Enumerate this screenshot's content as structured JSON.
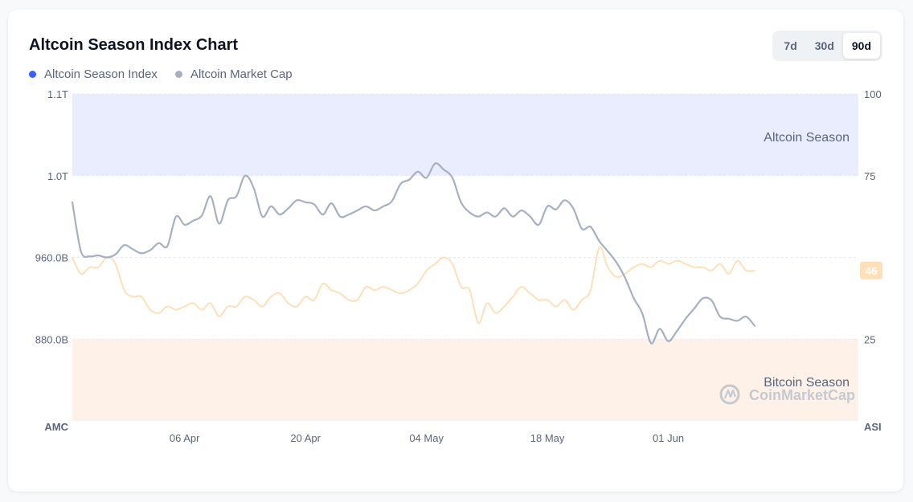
{
  "chart_data": {
    "type": "line",
    "title": "Altcoin Season Index Chart",
    "range_options": [
      "7d",
      "30d",
      "90d"
    ],
    "selected_range": "90d",
    "x_ticks": [
      "06 Apr",
      "20 Apr",
      "04 May",
      "18 May",
      "01 Jun"
    ],
    "x_tick_days": [
      6,
      20,
      34,
      48,
      62
    ],
    "x_range_days": [
      -7,
      84
    ],
    "x_axis_origin_note": "",
    "left_axis": {
      "title": "AMC",
      "ticks": [
        "1.1T",
        "1.0T",
        "960.0B",
        "880.0B"
      ],
      "range": [
        800,
        1120
      ]
    },
    "right_axis": {
      "title": "ASI",
      "ticks": [
        "100",
        "75",
        "25"
      ],
      "range": [
        0,
        100
      ]
    },
    "zones": {
      "altcoin": {
        "label": "Altcoin Season",
        "from": 75,
        "to": 100,
        "color": "#eaedfd"
      },
      "bitcoin": {
        "label": "Bitcoin Season",
        "from": 0,
        "to": 25,
        "color": "#fef1e8"
      }
    },
    "series": [
      {
        "name": "Altcoin Season Index",
        "axis": "right",
        "legend_color": "#3861fb",
        "line_color": "#ffdfb8",
        "last_value": "46",
        "values": [
          [
            -7,
            50
          ],
          [
            -6,
            45
          ],
          [
            -5,
            47
          ],
          [
            -4,
            47
          ],
          [
            -3,
            50
          ],
          [
            -2,
            48
          ],
          [
            -1,
            40
          ],
          [
            0,
            38
          ],
          [
            1,
            38
          ],
          [
            2,
            34
          ],
          [
            3,
            33
          ],
          [
            4,
            35
          ],
          [
            5,
            34
          ],
          [
            6,
            35
          ],
          [
            7,
            36
          ],
          [
            8,
            34
          ],
          [
            9,
            36
          ],
          [
            10,
            32
          ],
          [
            11,
            35
          ],
          [
            12,
            35
          ],
          [
            13,
            38
          ],
          [
            14,
            37
          ],
          [
            15,
            35
          ],
          [
            16,
            38
          ],
          [
            17,
            39
          ],
          [
            18,
            36
          ],
          [
            19,
            35
          ],
          [
            20,
            38
          ],
          [
            21,
            37
          ],
          [
            22,
            42
          ],
          [
            23,
            40
          ],
          [
            24,
            39
          ],
          [
            25,
            37
          ],
          [
            26,
            37
          ],
          [
            27,
            41
          ],
          [
            28,
            40
          ],
          [
            29,
            41
          ],
          [
            30,
            40
          ],
          [
            31,
            39
          ],
          [
            32,
            40
          ],
          [
            33,
            42
          ],
          [
            34,
            46
          ],
          [
            35,
            48
          ],
          [
            36,
            50
          ],
          [
            37,
            48
          ],
          [
            38,
            41
          ],
          [
            39,
            40
          ],
          [
            40,
            30
          ],
          [
            41,
            36
          ],
          [
            42,
            33
          ],
          [
            43,
            35
          ],
          [
            44,
            38
          ],
          [
            45,
            41
          ],
          [
            46,
            39
          ],
          [
            47,
            37
          ],
          [
            48,
            37
          ],
          [
            49,
            35
          ],
          [
            50,
            37
          ],
          [
            51,
            34
          ],
          [
            52,
            37
          ],
          [
            53,
            40
          ],
          [
            54,
            53
          ],
          [
            55,
            47
          ],
          [
            56,
            44
          ],
          [
            57,
            45
          ],
          [
            58,
            47
          ],
          [
            59,
            48
          ],
          [
            60,
            47
          ],
          [
            61,
            49
          ],
          [
            62,
            48
          ],
          [
            63,
            49
          ],
          [
            64,
            48
          ],
          [
            65,
            47
          ],
          [
            66,
            47
          ],
          [
            67,
            46
          ],
          [
            68,
            48
          ],
          [
            69,
            45
          ],
          [
            70,
            49
          ],
          [
            71,
            46
          ],
          [
            72,
            46
          ]
        ]
      },
      {
        "name": "Altcoin Market Cap",
        "axis": "left",
        "legend_color": "#a6b0c3",
        "line_color": "#a6b0c3",
        "values": [
          [
            -7,
            1014
          ],
          [
            -6,
            966
          ],
          [
            -5,
            961
          ],
          [
            -4,
            962
          ],
          [
            -3,
            960
          ],
          [
            -2,
            963
          ],
          [
            -1,
            972
          ],
          [
            0,
            968
          ],
          [
            1,
            964
          ],
          [
            2,
            967
          ],
          [
            3,
            974
          ],
          [
            4,
            971
          ],
          [
            5,
            1000
          ],
          [
            6,
            992
          ],
          [
            7,
            996
          ],
          [
            8,
            1001
          ],
          [
            9,
            1020
          ],
          [
            10,
            993
          ],
          [
            11,
            1016
          ],
          [
            12,
            1020
          ],
          [
            13,
            1040
          ],
          [
            14,
            1028
          ],
          [
            15,
            1000
          ],
          [
            16,
            1010
          ],
          [
            17,
            1002
          ],
          [
            18,
            1008
          ],
          [
            19,
            1016
          ],
          [
            20,
            1014
          ],
          [
            21,
            1012
          ],
          [
            22,
            1002
          ],
          [
            23,
            1013
          ],
          [
            24,
            1000
          ],
          [
            25,
            1002
          ],
          [
            26,
            1006
          ],
          [
            27,
            1010
          ],
          [
            28,
            1006
          ],
          [
            29,
            1010
          ],
          [
            30,
            1015
          ],
          [
            31,
            1032
          ],
          [
            32,
            1036
          ],
          [
            33,
            1044
          ],
          [
            34,
            1038
          ],
          [
            35,
            1052
          ],
          [
            36,
            1046
          ],
          [
            37,
            1038
          ],
          [
            38,
            1014
          ],
          [
            39,
            1004
          ],
          [
            40,
            1000
          ],
          [
            41,
            1004
          ],
          [
            42,
            1000
          ],
          [
            43,
            1008
          ],
          [
            44,
            1000
          ],
          [
            45,
            1006
          ],
          [
            46,
            1000
          ],
          [
            47,
            992
          ],
          [
            48,
            1010
          ],
          [
            49,
            1007
          ],
          [
            50,
            1016
          ],
          [
            51,
            1008
          ],
          [
            52,
            988
          ],
          [
            53,
            990
          ],
          [
            54,
            976
          ],
          [
            55,
            966
          ],
          [
            56,
            955
          ],
          [
            57,
            940
          ],
          [
            58,
            920
          ],
          [
            59,
            905
          ],
          [
            60,
            876
          ],
          [
            61,
            890
          ],
          [
            62,
            878
          ],
          [
            63,
            888
          ],
          [
            64,
            900
          ],
          [
            65,
            910
          ],
          [
            66,
            920
          ],
          [
            67,
            918
          ],
          [
            68,
            902
          ],
          [
            69,
            900
          ],
          [
            70,
            898
          ],
          [
            71,
            902
          ],
          [
            72,
            893
          ]
        ]
      }
    ],
    "watermark": "CoinMarketCap",
    "grid": "dashed-horizontal",
    "legend_position": "top-left"
  }
}
